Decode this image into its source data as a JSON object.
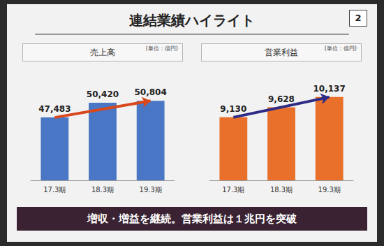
{
  "slide": {
    "title": "連結業績ハイライト",
    "page_number": "2",
    "summary": "増収・増益を継続。営業利益は１兆円を突破"
  },
  "chart_data": [
    {
      "type": "bar",
      "title": "売上高",
      "unit": "(単位：億円)",
      "categories": [
        "17.3期",
        "18.3期",
        "19.3期"
      ],
      "values": [
        47483,
        50420,
        50804
      ],
      "value_labels": [
        "47,483",
        "50,420",
        "50,804"
      ],
      "color": "#4a76c6",
      "ylim": [
        35000,
        55000
      ],
      "yticks": [
        35000,
        55000
      ],
      "grid": false,
      "data_labels": true,
      "tick_labels": "x"
    },
    {
      "type": "bar",
      "title": "営業利益",
      "unit": "(単位：億円)",
      "categories": [
        "17.3期",
        "18.3期",
        "19.3期"
      ],
      "values": [
        9130,
        9628,
        10137
      ],
      "value_labels": [
        "9,130",
        "9,628",
        "10,137"
      ],
      "color": "#e8702a",
      "ylim": [
        6000,
        11000
      ],
      "yticks": [
        6000,
        11000
      ],
      "grid": false,
      "data_labels": true,
      "tick_labels": "x"
    }
  ]
}
